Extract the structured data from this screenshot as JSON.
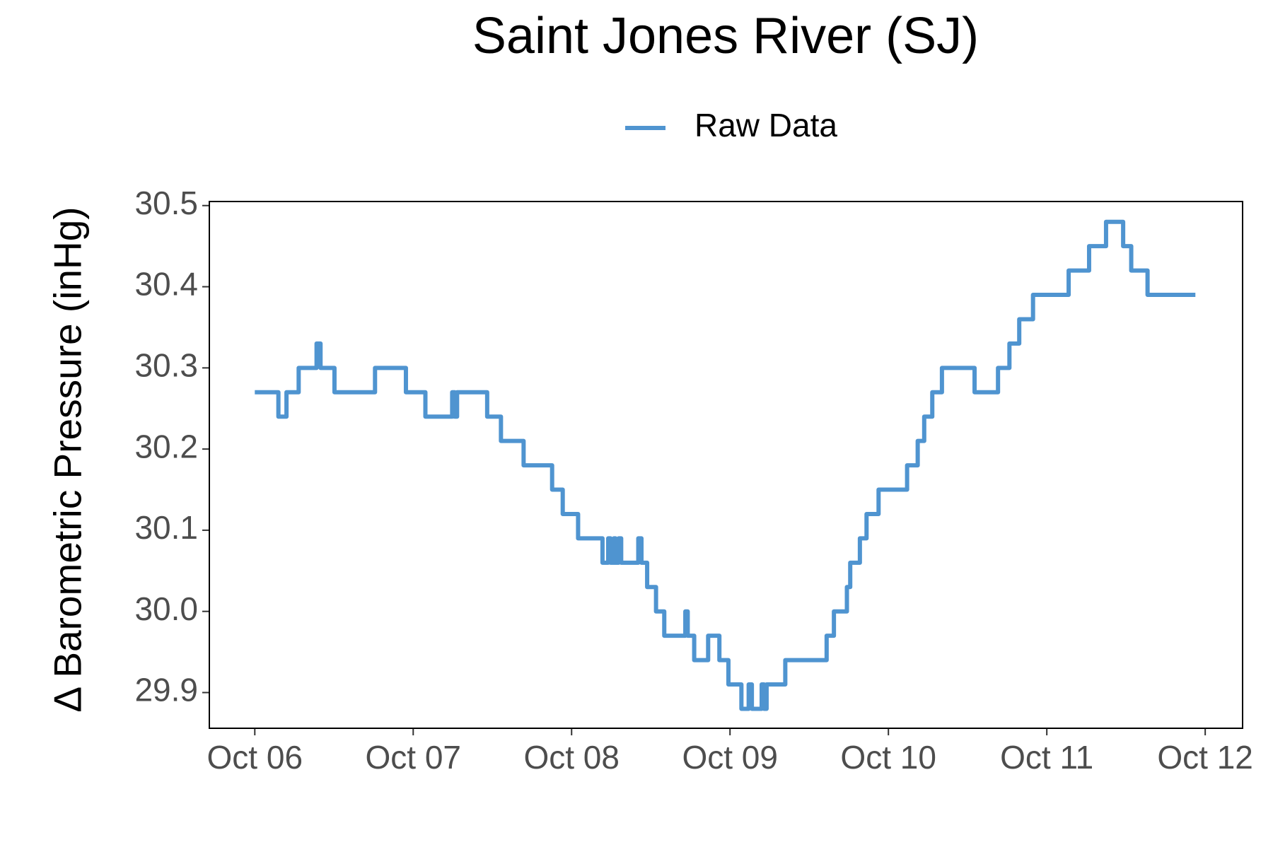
{
  "chart_data": {
    "type": "line",
    "title": "Saint Jones River (SJ)",
    "y_label": "Δ Barometric Pressure (inHg)",
    "legend": "top",
    "grid": false,
    "xlim": [
      -0.287,
      6.236
    ],
    "xticks": [
      {
        "value": 0,
        "label": "Oct 06"
      },
      {
        "value": 1,
        "label": "Oct 07"
      },
      {
        "value": 2,
        "label": "Oct 08"
      },
      {
        "value": 3,
        "label": "Oct 09"
      },
      {
        "value": 4,
        "label": "Oct 10"
      },
      {
        "value": 5,
        "label": "Oct 11"
      },
      {
        "value": 6,
        "label": "Oct 12"
      }
    ],
    "ylim": [
      29.856,
      30.505
    ],
    "yticks": [
      29.9,
      {
        "value": 30,
        "label": "30.0"
      },
      30.1,
      30.2,
      30.3,
      30.4,
      30.5
    ],
    "x": [
      0,
      0.149,
      0.149,
      0.2,
      0.2,
      0.277,
      0.277,
      0.39,
      0.39,
      0.415,
      0.415,
      0.503,
      0.503,
      0.759,
      0.759,
      0.954,
      0.954,
      1.077,
      1.077,
      1.246,
      1.246,
      1.262,
      1.262,
      1.277,
      1.277,
      1.467,
      1.467,
      1.554,
      1.554,
      1.697,
      1.697,
      1.877,
      1.877,
      1.944,
      1.944,
      2.041,
      2.041,
      2.195,
      2.195,
      2.231,
      2.231,
      2.246,
      2.246,
      2.267,
      2.267,
      2.277,
      2.277,
      2.297,
      2.297,
      2.313,
      2.313,
      2.421,
      2.421,
      2.441,
      2.441,
      2.477,
      2.477,
      2.533,
      2.533,
      2.585,
      2.585,
      2.718,
      2.718,
      2.733,
      2.733,
      2.774,
      2.774,
      2.862,
      2.862,
      2.933,
      2.933,
      2.99,
      2.99,
      3.072,
      3.072,
      3.118,
      3.118,
      3.138,
      3.138,
      3.2,
      3.2,
      3.215,
      3.215,
      3.231,
      3.231,
      3.349,
      3.349,
      3.61,
      3.61,
      3.656,
      3.656,
      3.738,
      3.738,
      3.759,
      3.759,
      3.82,
      3.82,
      3.862,
      3.862,
      3.938,
      3.938,
      4.118,
      4.118,
      4.185,
      4.185,
      4.226,
      4.226,
      4.277,
      4.277,
      4.338,
      4.338,
      4.544,
      4.544,
      4.692,
      4.692,
      4.764,
      4.764,
      4.826,
      4.826,
      4.913,
      4.913,
      5.138,
      5.138,
      5.267,
      5.267,
      5.374,
      5.374,
      5.482,
      5.482,
      5.533,
      5.533,
      5.636,
      5.636,
      5.938
    ],
    "series": [
      {
        "name": "Raw Data",
        "color": "#4f94d0",
        "values": [
          30.27,
          30.27,
          30.24,
          30.24,
          30.27,
          30.27,
          30.3,
          30.3,
          30.33,
          30.33,
          30.3,
          30.3,
          30.27,
          30.27,
          30.3,
          30.3,
          30.27,
          30.27,
          30.24,
          30.24,
          30.27,
          30.27,
          30.24,
          30.24,
          30.27,
          30.27,
          30.24,
          30.24,
          30.21,
          30.21,
          30.18,
          30.18,
          30.15,
          30.15,
          30.12,
          30.12,
          30.09,
          30.09,
          30.06,
          30.06,
          30.09,
          30.09,
          30.06,
          30.06,
          30.09,
          30.09,
          30.06,
          30.06,
          30.09,
          30.09,
          30.06,
          30.06,
          30.09,
          30.09,
          30.06,
          30.06,
          30.03,
          30.03,
          30.0,
          30.0,
          29.97,
          29.97,
          30.0,
          30.0,
          29.97,
          29.97,
          29.94,
          29.94,
          29.97,
          29.97,
          29.94,
          29.94,
          29.91,
          29.91,
          29.88,
          29.88,
          29.91,
          29.91,
          29.88,
          29.88,
          29.91,
          29.91,
          29.88,
          29.88,
          29.91,
          29.91,
          29.94,
          29.94,
          29.97,
          29.97,
          30.0,
          30.0,
          30.03,
          30.03,
          30.06,
          30.06,
          30.09,
          30.09,
          30.12,
          30.12,
          30.15,
          30.15,
          30.18,
          30.18,
          30.21,
          30.21,
          30.24,
          30.24,
          30.27,
          30.27,
          30.3,
          30.3,
          30.27,
          30.27,
          30.3,
          30.3,
          30.33,
          30.33,
          30.36,
          30.36,
          30.39,
          30.39,
          30.42,
          30.42,
          30.45,
          30.45,
          30.48,
          30.48,
          30.45,
          30.45,
          30.42,
          30.42,
          30.39,
          30.39
        ]
      }
    ]
  }
}
